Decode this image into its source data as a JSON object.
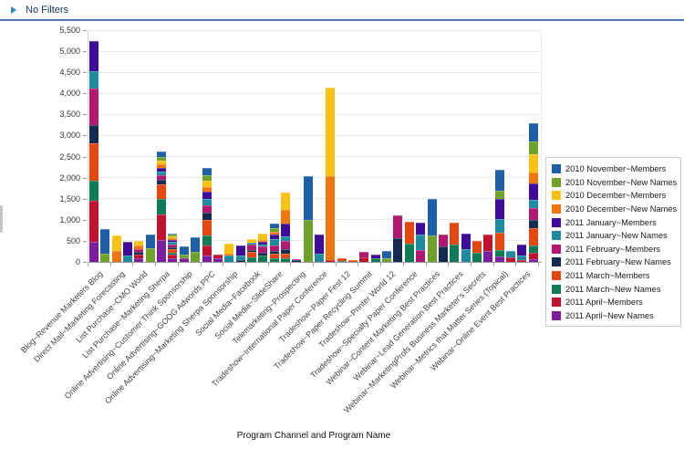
{
  "header": {
    "title": "No Filters",
    "collapse_icon": "right-triangle"
  },
  "accent_colors": {
    "topbar_border": "#4a7ab5",
    "collapse_arrow": "#2e86c1"
  },
  "chart_data": {
    "type": "bar",
    "stacked": true,
    "title": "",
    "xlabel": "Program Channel and Program Name",
    "ylabel": "",
    "ylim": [
      0,
      5500
    ],
    "ytick_step": 500,
    "grid": true,
    "legend_position": "right",
    "series_legend": [
      {
        "key": "novM",
        "label": "2010 November~Members",
        "color": "#1f5fa8"
      },
      {
        "key": "novNN",
        "label": "2010 November~New Names",
        "color": "#6fa22b"
      },
      {
        "key": "decM",
        "label": "2010 December~Members",
        "color": "#f9c213"
      },
      {
        "key": "decNN",
        "label": "2010 December~New Names",
        "color": "#f2750c"
      },
      {
        "key": "janM",
        "label": "2011 January~Members",
        "color": "#400d9b"
      },
      {
        "key": "janNN",
        "label": "2011 January~New Names",
        "color": "#1e8ba1"
      },
      {
        "key": "febM",
        "label": "2011 February~Members",
        "color": "#b2186f"
      },
      {
        "key": "febNN",
        "label": "2011 February~New Names",
        "color": "#152a50"
      },
      {
        "key": "marM",
        "label": "2011 March~Members",
        "color": "#e4480e"
      },
      {
        "key": "marNN",
        "label": "2011 March~New Names",
        "color": "#0f7b55"
      },
      {
        "key": "aprM",
        "label": "2011 April~Members",
        "color": "#c11230"
      },
      {
        "key": "aprNN",
        "label": "2011 April~New Names",
        "color": "#7b1fa0"
      }
    ],
    "stack_order_bottom_to_top": [
      "aprNN",
      "aprM",
      "marNN",
      "marM",
      "febNN",
      "febM",
      "janNN",
      "janM",
      "decNN",
      "decM",
      "novNN",
      "novM"
    ],
    "bars": [
      {
        "label": "Blog~Revenue Marketers Blog",
        "values": {
          "aprNN": 480,
          "aprM": 975,
          "marNN": 470,
          "marM": 900,
          "febNN": 430,
          "febM": 870,
          "janNN": 400,
          "janM": 720
        }
      },
      {
        "label": "",
        "values": {
          "novNN": 195,
          "novM": 585
        }
      },
      {
        "label": "Direct Mail~Marketing Forecasting",
        "values": {
          "decNN": 270,
          "decM": 360
        }
      },
      {
        "label": "",
        "values": {
          "janNN": 150,
          "janM": 325
        }
      },
      {
        "label": "List Purchase~CMO World",
        "values": {
          "aprNN": 90,
          "aprM": 90,
          "febNN": 60,
          "febM": 60,
          "decNN": 90,
          "decM": 110
        }
      },
      {
        "label": "",
        "values": {
          "novNN": 325,
          "novM": 315
        }
      },
      {
        "label": "List Purchase~Marketing Sherpa",
        "values": {
          "aprNN": 510,
          "aprM": 615,
          "marNN": 360,
          "marM": 350,
          "febNN": 120,
          "febM": 100,
          "janNN": 90,
          "janM": 90,
          "decNN": 80,
          "decM": 80,
          "novNN": 100,
          "novM": 120
        }
      },
      {
        "label": "",
        "values": {
          "aprNN": 90,
          "aprM": 75,
          "marNN": 60,
          "marM": 70,
          "febNN": 50,
          "febM": 70,
          "janNN": 60,
          "janM": 50,
          "decNN": 40,
          "decM": 40,
          "novNN": 40,
          "novM": 20
        }
      },
      {
        "label": "Online Advertising~Customer Think Sponsorship",
        "values": {
          "aprNN": 85,
          "novNN": 90,
          "novM": 185
        }
      },
      {
        "label": "",
        "values": {
          "novNN": 230,
          "novM": 360
        }
      },
      {
        "label": "Online Advertising~GOOG Adwords PPC",
        "values": {
          "aprNN": 160,
          "aprM": 240,
          "marNN": 230,
          "marM": 360,
          "febNN": 180,
          "febM": 170,
          "janNN": 150,
          "janM": 170,
          "decNN": 120,
          "decM": 150,
          "novNN": 130,
          "novM": 170
        }
      },
      {
        "label": "",
        "values": {
          "aprNN": 95,
          "aprM": 75
        }
      },
      {
        "label": "Online Advertising~Marketing Sherpa Sponsorship",
        "values": {
          "janNN": 160,
          "decNN": 40,
          "decM": 230
        }
      },
      {
        "label": "",
        "values": {
          "febNN": 50,
          "janNN": 95,
          "janM": 245
        }
      },
      {
        "label": "Social Media~Facebook",
        "values": {
          "marNN": 115,
          "marM": 120,
          "febNN": 40,
          "febM": 130,
          "janNN": 60,
          "decM": 70
        }
      },
      {
        "label": "",
        "values": {
          "marNN": 150,
          "febNN": 70,
          "febM": 140,
          "janNN": 60,
          "janM": 60,
          "decNN": 50,
          "decM": 150
        }
      },
      {
        "label": "Social Media~SlideShare",
        "values": {
          "marNN": 90,
          "marM": 100,
          "febNN": 80,
          "febM": 120,
          "janNN": 150,
          "janM": 120,
          "decNN": 60,
          "novNN": 90,
          "novM": 100
        }
      },
      {
        "label": "",
        "values": {
          "marNN": 95,
          "marM": 110,
          "febNN": 100,
          "febM": 200,
          "janNN": 110,
          "janM": 290,
          "decNN": 325,
          "decM": 420
        }
      },
      {
        "label": "Telemarketing~Prospecting",
        "values": {
          "febNN": 40,
          "febM": 35
        }
      },
      {
        "label": "",
        "values": {
          "novNN": 990,
          "novM": 1040
        }
      },
      {
        "label": "Tradeshow~International Paper Conference",
        "values": {
          "janNN": 190,
          "janM": 455
        }
      },
      {
        "label": "",
        "values": {
          "aprM": 40,
          "decNN": 1990,
          "decM": 2110
        }
      },
      {
        "label": "Tradeshow~Paper Fest 12",
        "values": {
          "marM": 55,
          "marNN": 30
        }
      },
      {
        "label": "",
        "values": {
          "marM": 45
        }
      },
      {
        "label": "Tradeshow~Paper Recycling Summit",
        "values": {
          "aprM": 110,
          "febM": 130
        }
      },
      {
        "label": "",
        "values": {
          "marNN": 90,
          "janM": 90
        }
      },
      {
        "label": "Tradeshow~Printer World 12",
        "values": {
          "novNN": 95,
          "novM": 175
        }
      },
      {
        "label": "",
        "values": {
          "febNN": 560,
          "febM": 550
        }
      },
      {
        "label": "Tradeshow~Specialty Paper Conference",
        "values": {
          "marNN": 435,
          "marM": 520
        }
      },
      {
        "label": "",
        "values": {
          "janNN": 370,
          "janM": 265,
          "febM": 290
        }
      },
      {
        "label": "Webinar~Content Marketing Best Practices",
        "values": {
          "novNN": 620,
          "novM": 880
        }
      },
      {
        "label": "",
        "values": {
          "febNN": 370,
          "febM": 290
        }
      },
      {
        "label": "Webinar~Lead Generation Best Practices",
        "values": {
          "marNN": 405,
          "marM": 520
        }
      },
      {
        "label": "",
        "values": {
          "janNN": 300,
          "janM": 380
        }
      },
      {
        "label": "Webinar~MarketingProfs Business Marketer's Secrets",
        "values": {
          "marNN": 225,
          "marM": 265
        }
      },
      {
        "label": "",
        "values": {
          "aprNN": 260,
          "aprM": 400
        }
      },
      {
        "label": "Webinar~Metrics that Matter Series (Topical)",
        "values": {
          "aprNN": 130,
          "marNN": 145,
          "marM": 420,
          "janNN": 325,
          "janM": 485,
          "novNN": 190,
          "novM": 500
        }
      },
      {
        "label": "",
        "values": {
          "aprM": 115,
          "janNN": 145
        }
      },
      {
        "label": "Webinar~Online Event Best Practices",
        "values": {
          "aprM": 40,
          "janNN": 110,
          "janM": 270
        }
      },
      {
        "label": "",
        "values": {
          "aprNN": 60,
          "aprM": 165,
          "marNN": 165,
          "marM": 410,
          "febNN": 195,
          "febM": 275,
          "janNN": 200,
          "janM": 390,
          "decNN": 255,
          "decM": 435,
          "novNN": 310,
          "novM": 435
        }
      }
    ]
  }
}
